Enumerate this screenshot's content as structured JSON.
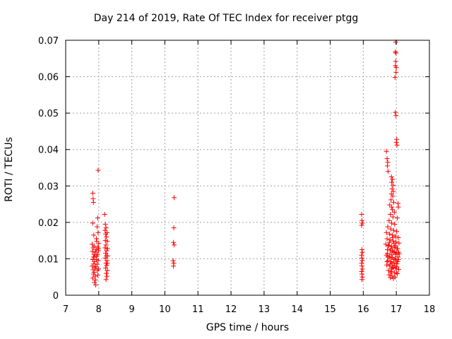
{
  "chart_data": {
    "type": "scatter",
    "title": "Day 214 of 2019, Rate Of TEC Index for receiver ptgg",
    "xlabel": "GPS time / hours",
    "ylabel": "ROTI / TECUs",
    "xlim": [
      7,
      18
    ],
    "ylim": [
      0,
      0.07
    ],
    "xticks": [
      "7",
      "8",
      "9",
      "10",
      "11",
      "12",
      "13",
      "14",
      "15",
      "16",
      "17",
      "18"
    ],
    "yticks": [
      "0",
      "0.01",
      "0.02",
      "0.03",
      "0.04",
      "0.05",
      "0.06",
      "0.07"
    ],
    "grid": true,
    "marker": "+",
    "color": "#ff0000",
    "series": [
      {
        "name": "ROTI",
        "points": [
          [
            7.82,
            0.028
          ],
          [
            7.83,
            0.0265
          ],
          [
            7.84,
            0.0255
          ],
          [
            7.82,
            0.0198
          ],
          [
            7.85,
            0.0165
          ],
          [
            7.8,
            0.014
          ],
          [
            7.83,
            0.013
          ],
          [
            7.81,
            0.012
          ],
          [
            7.86,
            0.0112
          ],
          [
            7.84,
            0.0105
          ],
          [
            7.82,
            0.0098
          ],
          [
            7.87,
            0.0092
          ],
          [
            7.85,
            0.0086
          ],
          [
            7.8,
            0.008
          ],
          [
            7.88,
            0.0075
          ],
          [
            7.83,
            0.007
          ],
          [
            7.86,
            0.0063
          ],
          [
            7.84,
            0.0058
          ],
          [
            7.89,
            0.0052
          ],
          [
            7.82,
            0.0047
          ],
          [
            7.9,
            0.0042
          ],
          [
            7.87,
            0.0035
          ],
          [
            7.91,
            0.0028
          ],
          [
            7.88,
            0.0105
          ],
          [
            7.92,
            0.0125
          ],
          [
            7.86,
            0.0135
          ],
          [
            7.94,
            0.0148
          ],
          [
            7.9,
            0.0118
          ],
          [
            7.93,
            0.0098
          ],
          [
            7.95,
            0.0085
          ],
          [
            7.91,
            0.0078
          ],
          [
            7.96,
            0.0068
          ],
          [
            7.94,
            0.0108
          ],
          [
            7.97,
            0.0132
          ],
          [
            7.93,
            0.0155
          ],
          [
            7.98,
            0.0172
          ],
          [
            7.95,
            0.0188
          ],
          [
            7.97,
            0.0212
          ],
          [
            7.99,
            0.0128
          ],
          [
            7.96,
            0.0112
          ],
          [
            7.98,
            0.0095
          ],
          [
            7.99,
            0.0072
          ],
          [
            7.97,
            0.0055
          ],
          [
            8.0,
            0.0142
          ],
          [
            7.99,
            0.0122
          ],
          [
            7.98,
            0.0343
          ],
          [
            8.18,
            0.0222
          ],
          [
            8.2,
            0.0195
          ],
          [
            8.22,
            0.0185
          ],
          [
            8.19,
            0.0178
          ],
          [
            8.21,
            0.0168
          ],
          [
            8.23,
            0.016
          ],
          [
            8.2,
            0.015
          ],
          [
            8.22,
            0.0138
          ],
          [
            8.19,
            0.013
          ],
          [
            8.24,
            0.0122
          ],
          [
            8.21,
            0.0115
          ],
          [
            8.23,
            0.0108
          ],
          [
            8.2,
            0.0102
          ],
          [
            8.25,
            0.0095
          ],
          [
            8.22,
            0.0088
          ],
          [
            8.24,
            0.0082
          ],
          [
            8.21,
            0.0075
          ],
          [
            8.26,
            0.0068
          ],
          [
            8.23,
            0.006
          ],
          [
            8.25,
            0.0052
          ],
          [
            8.22,
            0.0043
          ],
          [
            8.27,
            0.0128
          ],
          [
            8.26,
            0.0148
          ],
          [
            8.25,
            0.0172
          ],
          [
            8.27,
            0.0108
          ],
          [
            8.26,
            0.0088
          ],
          [
            10.28,
            0.0268
          ],
          [
            10.27,
            0.0185
          ],
          [
            10.26,
            0.0145
          ],
          [
            10.28,
            0.0138
          ],
          [
            10.25,
            0.0095
          ],
          [
            10.27,
            0.0088
          ],
          [
            10.26,
            0.008
          ],
          [
            15.95,
            0.0222
          ],
          [
            15.96,
            0.0205
          ],
          [
            15.97,
            0.0198
          ],
          [
            15.95,
            0.0192
          ],
          [
            15.96,
            0.0125
          ],
          [
            15.97,
            0.0118
          ],
          [
            15.95,
            0.011
          ],
          [
            15.96,
            0.0102
          ],
          [
            15.97,
            0.0095
          ],
          [
            15.95,
            0.0088
          ],
          [
            15.96,
            0.008
          ],
          [
            15.97,
            0.0072
          ],
          [
            15.95,
            0.0065
          ],
          [
            15.96,
            0.0058
          ],
          [
            15.97,
            0.005
          ],
          [
            15.96,
            0.0043
          ],
          [
            16.98,
            0.0695
          ],
          [
            16.97,
            0.0668
          ],
          [
            16.99,
            0.0665
          ],
          [
            16.98,
            0.0642
          ],
          [
            16.97,
            0.063
          ],
          [
            17.0,
            0.0625
          ],
          [
            16.99,
            0.0612
          ],
          [
            16.96,
            0.0598
          ],
          [
            16.97,
            0.0502
          ],
          [
            16.99,
            0.0493
          ],
          [
            17.01,
            0.0428
          ],
          [
            17.0,
            0.042
          ],
          [
            17.02,
            0.0412
          ],
          [
            16.7,
            0.0395
          ],
          [
            16.72,
            0.0375
          ],
          [
            16.74,
            0.0365
          ],
          [
            16.73,
            0.0355
          ],
          [
            16.75,
            0.034
          ],
          [
            16.85,
            0.0325
          ],
          [
            16.88,
            0.0318
          ],
          [
            16.86,
            0.031
          ],
          [
            16.9,
            0.0302
          ],
          [
            16.87,
            0.0292
          ],
          [
            16.91,
            0.0285
          ],
          [
            16.85,
            0.0278
          ],
          [
            16.89,
            0.0272
          ],
          [
            16.84,
            0.0262
          ],
          [
            16.92,
            0.0255
          ],
          [
            16.8,
            0.0248
          ],
          [
            16.86,
            0.0242
          ],
          [
            17.05,
            0.0252
          ],
          [
            17.06,
            0.0242
          ],
          [
            16.88,
            0.0235
          ],
          [
            16.94,
            0.0228
          ],
          [
            16.82,
            0.0222
          ],
          [
            16.9,
            0.0215
          ],
          [
            17.03,
            0.0212
          ],
          [
            16.78,
            0.0205
          ],
          [
            16.86,
            0.0198
          ],
          [
            16.95,
            0.0195
          ],
          [
            16.74,
            0.0188
          ],
          [
            16.83,
            0.0182
          ],
          [
            16.92,
            0.0178
          ],
          [
            17.01,
            0.0175
          ],
          [
            16.7,
            0.0172
          ],
          [
            16.79,
            0.0168
          ],
          [
            16.88,
            0.0165
          ],
          [
            16.97,
            0.0162
          ],
          [
            17.06,
            0.0158
          ],
          [
            16.72,
            0.0155
          ],
          [
            16.81,
            0.0152
          ],
          [
            16.9,
            0.0149
          ],
          [
            16.99,
            0.0146
          ],
          [
            17.08,
            0.0143
          ],
          [
            16.68,
            0.014
          ],
          [
            16.77,
            0.0137
          ],
          [
            16.86,
            0.0134
          ],
          [
            16.95,
            0.0131
          ],
          [
            17.04,
            0.0128
          ],
          [
            16.73,
            0.0125
          ],
          [
            16.82,
            0.0122
          ],
          [
            16.91,
            0.0119
          ],
          [
            17.0,
            0.0116
          ],
          [
            17.09,
            0.0113
          ],
          [
            16.7,
            0.011
          ],
          [
            16.79,
            0.0107
          ],
          [
            16.88,
            0.0104
          ],
          [
            16.97,
            0.0101
          ],
          [
            17.06,
            0.0098
          ],
          [
            16.75,
            0.0095
          ],
          [
            16.84,
            0.0092
          ],
          [
            16.93,
            0.0089
          ],
          [
            17.02,
            0.0086
          ],
          [
            16.71,
            0.0083
          ],
          [
            16.8,
            0.008
          ],
          [
            16.89,
            0.0077
          ],
          [
            16.98,
            0.0074
          ],
          [
            17.07,
            0.0071
          ],
          [
            16.76,
            0.0068
          ],
          [
            16.85,
            0.0065
          ],
          [
            16.94,
            0.0062
          ],
          [
            17.03,
            0.0059
          ],
          [
            16.78,
            0.0056
          ],
          [
            16.87,
            0.0053
          ],
          [
            16.96,
            0.005
          ],
          [
            16.82,
            0.0048
          ],
          [
            16.91,
            0.0046
          ],
          [
            17.0,
            0.0062
          ],
          [
            16.73,
            0.0115
          ],
          [
            16.84,
            0.0128
          ],
          [
            16.93,
            0.0142
          ],
          [
            17.05,
            0.0105
          ],
          [
            16.87,
            0.0088
          ],
          [
            16.76,
            0.0135
          ],
          [
            16.95,
            0.0118
          ],
          [
            17.02,
            0.0128
          ],
          [
            16.8,
            0.0102
          ],
          [
            16.89,
            0.0158
          ],
          [
            16.98,
            0.0112
          ],
          [
            16.72,
            0.0092
          ],
          [
            16.86,
            0.0072
          ],
          [
            16.94,
            0.0082
          ],
          [
            17.04,
            0.0092
          ],
          [
            16.83,
            0.0062
          ],
          [
            16.92,
            0.0098
          ],
          [
            16.79,
            0.0145
          ],
          [
            16.97,
            0.0136
          ],
          [
            17.07,
            0.0118
          ],
          [
            16.88,
            0.0122
          ],
          [
            16.81,
            0.0085
          ],
          [
            16.9,
            0.0075
          ],
          [
            16.99,
            0.0095
          ],
          [
            17.01,
            0.0078
          ],
          [
            16.74,
            0.0105
          ],
          [
            16.85,
            0.0112
          ]
        ]
      }
    ]
  }
}
